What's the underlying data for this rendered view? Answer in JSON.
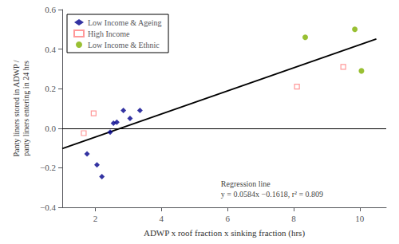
{
  "chart_data": {
    "type": "scatter",
    "xlabel": "ADWP x roof fraction x sinking fraction (hrs)",
    "ylabel": "Panty liners stored in ADWP /\npanty liners entering in 24 hrs",
    "xlim": [
      1.0,
      10.8
    ],
    "xticks": [
      2,
      4,
      6,
      8,
      10
    ],
    "ylim": [
      -0.4,
      0.6
    ],
    "yticks": [
      {
        "value": -0.4,
        "label": "−0.4"
      },
      {
        "value": -0.2,
        "label": "−0.2"
      },
      {
        "value": 0.0,
        "label": "0.0"
      },
      0.2,
      0.4,
      0.6
    ],
    "grid": false,
    "legend": "upper left",
    "series": [
      {
        "name": "Low Income & Ageing",
        "type": "scatter",
        "marker": "diamond",
        "color": "#00008B",
        "x": [
          1.75,
          2.05,
          2.2,
          2.45,
          2.55,
          2.65,
          2.85,
          3.05,
          3.35
        ],
        "values": [
          -0.13,
          -0.185,
          -0.245,
          -0.02,
          0.025,
          0.03,
          0.09,
          0.05,
          0.09
        ]
      },
      {
        "name": "High Income",
        "type": "scatter",
        "marker": "open-square",
        "color": "#FF8080",
        "x": [
          1.65,
          1.95,
          8.1,
          9.5
        ],
        "values": [
          -0.025,
          0.075,
          0.21,
          0.31
        ]
      },
      {
        "name": "Low Income & Ethnic",
        "type": "scatter",
        "marker": "circle",
        "color": "#80B000",
        "x": [
          8.35,
          9.85,
          10.05
        ],
        "values": [
          0.46,
          0.5,
          0.29
        ]
      },
      {
        "type": "line",
        "color": "#000000",
        "x": [
          1.0,
          10.5
        ],
        "values": [
          -0.1034,
          0.4514
        ]
      }
    ],
    "hline": {
      "value": 0,
      "color": "#000000"
    },
    "annotations": [
      {
        "text": "Regression line\ny = 0.0584x −0.1618, r² = 0.809",
        "x": 5.8,
        "y": -0.255
      }
    ]
  }
}
